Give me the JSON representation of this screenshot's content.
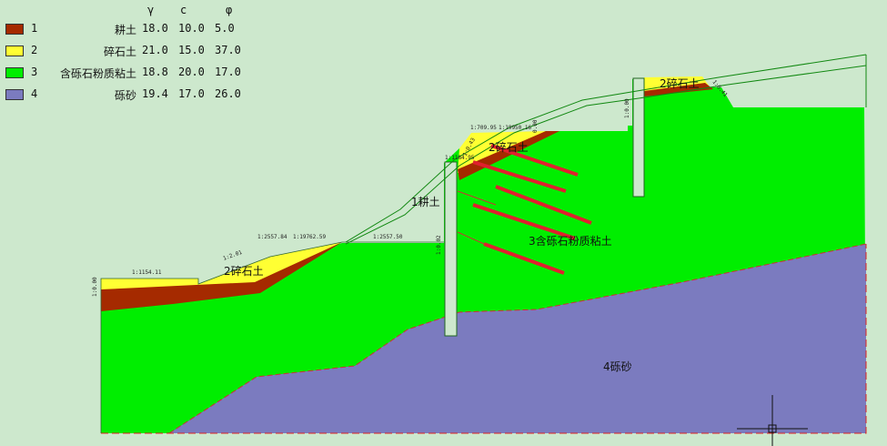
{
  "legend": {
    "headers": [
      "γ",
      "c",
      "φ"
    ],
    "rows": [
      {
        "id": "1",
        "name": "耕土",
        "gamma": "18.0",
        "c": "10.0",
        "phi": "5.0",
        "color": "#a52a00"
      },
      {
        "id": "2",
        "name": "碎石土",
        "gamma": "21.0",
        "c": "15.0",
        "phi": "37.0",
        "color": "#ffff33"
      },
      {
        "id": "3",
        "name": "含砾石粉质粘土",
        "gamma": "18.8",
        "c": "20.0",
        "phi": "17.0",
        "color": "#00ee00"
      },
      {
        "id": "4",
        "name": "砾砂",
        "gamma": "19.4",
        "c": "17.0",
        "phi": "26.0",
        "color": "#7b7bbf"
      }
    ]
  },
  "labels": {
    "layer2_left": "2碎石土",
    "layer1_mid": "1耕土",
    "layer2_mid": "2碎石土",
    "layer3": "3含砾石粉质粘土",
    "layer2_right": "2碎石土",
    "layer4": "4砾砂"
  },
  "dimensions": {
    "left_height": "1:0.00",
    "left_top": "1:1154.11",
    "slope_left": "1:2.01",
    "bench_a": "1:2557.84",
    "bench_b": "1:19762.59",
    "bench_c": "1:2557.50",
    "pile1_side": "1:0.02",
    "mid_bench": "1:1184.95",
    "mid_slope": "1:0.43",
    "upper_bench": "1:709.95",
    "upper_bench2": "1:19950.16",
    "upper_small": "0.00",
    "pile2_side": "1:0.00",
    "right_slope": "1:0.41"
  }
}
